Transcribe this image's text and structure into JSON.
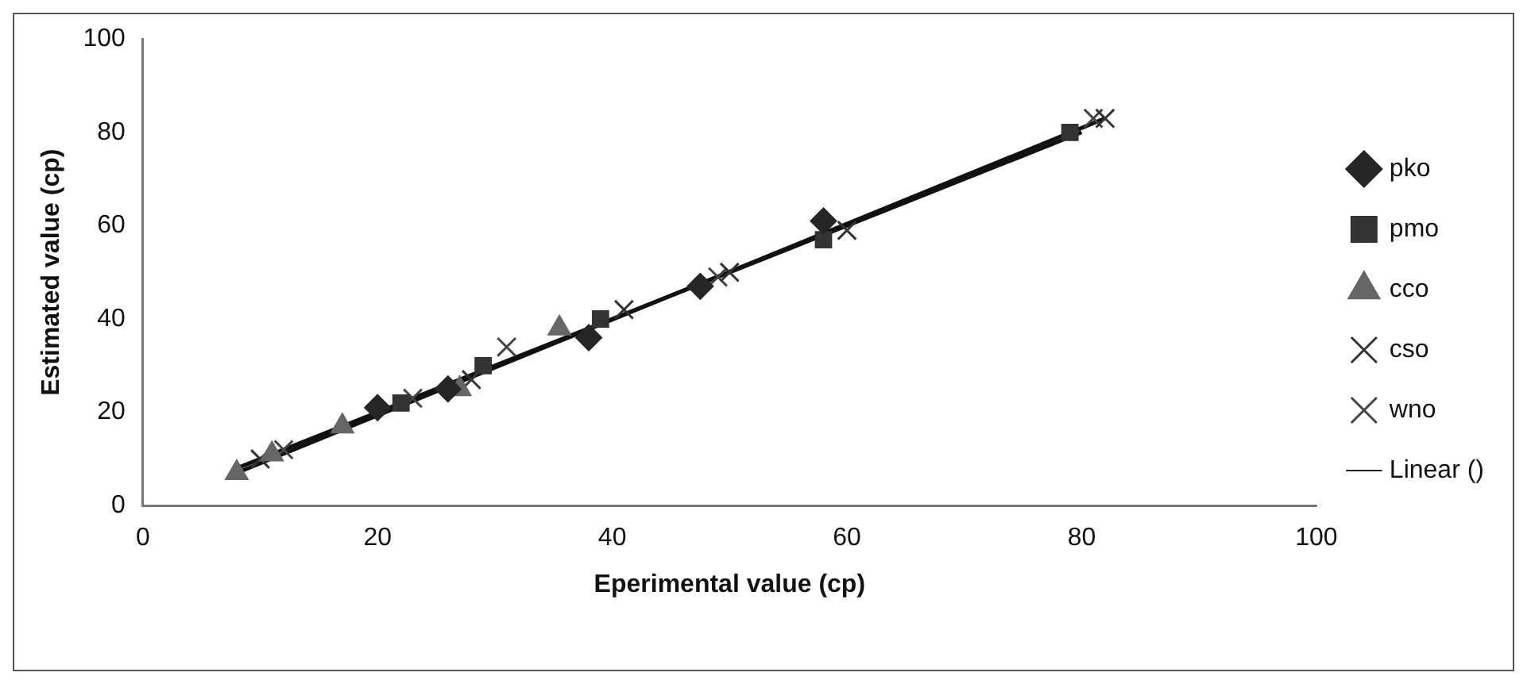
{
  "chart_data": {
    "type": "scatter",
    "xlabel": "Eperimental value (cp)",
    "ylabel": "Estimated value (cp)",
    "xlim": [
      0,
      100
    ],
    "ylim": [
      0,
      100
    ],
    "xticks": [
      0,
      20,
      40,
      60,
      80,
      100
    ],
    "yticks": [
      0,
      20,
      40,
      60,
      80,
      100
    ],
    "grid": false,
    "legend": "right",
    "series": [
      {
        "name": "pko",
        "color": "#262626",
        "marker": "diamond",
        "x": [
          20,
          26,
          38,
          47.5,
          58
        ],
        "values": [
          21,
          25,
          36,
          47,
          61
        ]
      },
      {
        "name": "pmo",
        "color": "#333333",
        "marker": "square",
        "x": [
          22,
          29,
          39,
          58,
          79
        ],
        "values": [
          22,
          30,
          40,
          57,
          80
        ]
      },
      {
        "name": "cco",
        "color": "#666666",
        "marker": "triangle",
        "x": [
          8,
          11,
          17,
          27,
          35.5
        ],
        "values": [
          7,
          11,
          17,
          25,
          38
        ]
      },
      {
        "name": "cso",
        "color": "#333333",
        "marker": "cross",
        "x": [
          10,
          28,
          41,
          50,
          60,
          82
        ],
        "values": [
          10,
          27,
          42,
          50,
          59,
          83
        ]
      },
      {
        "name": "wno",
        "color": "#444444",
        "marker": "cross",
        "x": [
          12,
          23,
          31,
          49,
          81
        ],
        "values": [
          12,
          23,
          34,
          49,
          83
        ]
      },
      {
        "name": "Linear ()",
        "type": "line",
        "color": "#111111",
        "marker": "none",
        "line_style": "solid",
        "x": [
          8,
          82
        ],
        "values": [
          7,
          83
        ]
      },
      {
        "type": "line",
        "color": "#111111",
        "marker": "none",
        "line_style": "solid",
        "x": [
          8,
          80
        ],
        "values": [
          8,
          80
        ]
      }
    ]
  }
}
